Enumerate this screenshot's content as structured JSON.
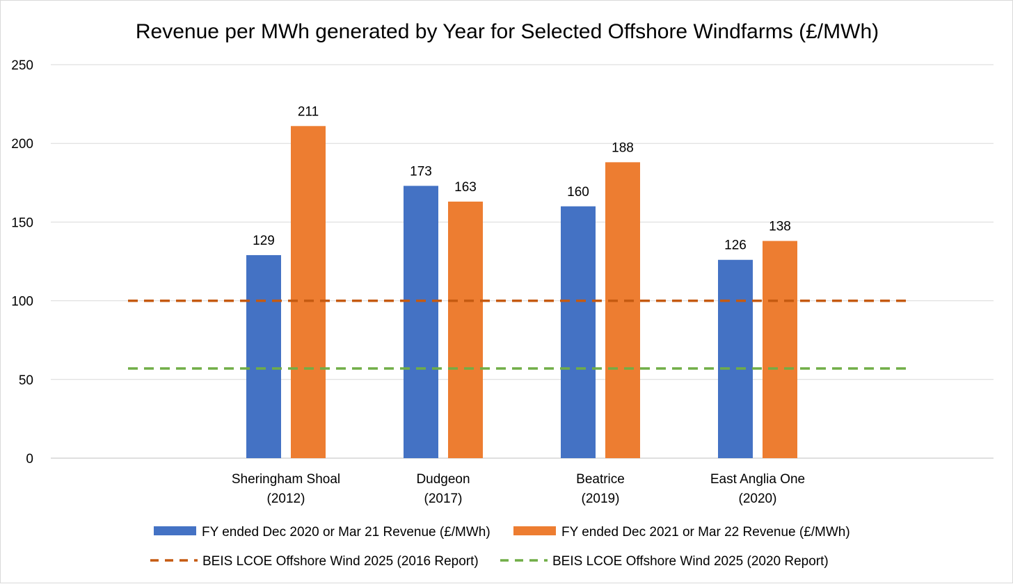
{
  "chart_data": {
    "type": "bar",
    "title": "Revenue per MWh generated by Year for Selected Offshore Windfarms (£/MWh)",
    "xlabel": "",
    "ylabel": "",
    "ylim": [
      0,
      250
    ],
    "yticks": [
      0,
      50,
      100,
      150,
      200,
      250
    ],
    "grid": true,
    "legend_position": "bottom",
    "categories": [
      [
        "Sheringham Shoal",
        "(2012)"
      ],
      [
        "Dudgeon",
        "(2017)"
      ],
      [
        "Beatrice",
        "(2019)"
      ],
      [
        "East Anglia One",
        "(2020)"
      ]
    ],
    "series": [
      {
        "name": "FY ended Dec 2020 or Mar 21 Revenue (£/MWh)",
        "color": "#4472C4",
        "values": [
          129,
          173,
          160,
          126
        ]
      },
      {
        "name": "FY ended Dec 2021 or Mar 22 Revenue (£/MWh)",
        "color": "#ED7D31",
        "values": [
          211,
          163,
          188,
          138
        ]
      }
    ],
    "reference_lines": [
      {
        "name": "BEIS LCOE Offshore Wind 2025 (2016 Report)",
        "color": "#C55A11",
        "style": "dashed",
        "value": 100
      },
      {
        "name": "BEIS LCOE Offshore Wind 2025 (2020 Report)",
        "color": "#70AD47",
        "style": "dashed",
        "value": 57
      }
    ]
  }
}
